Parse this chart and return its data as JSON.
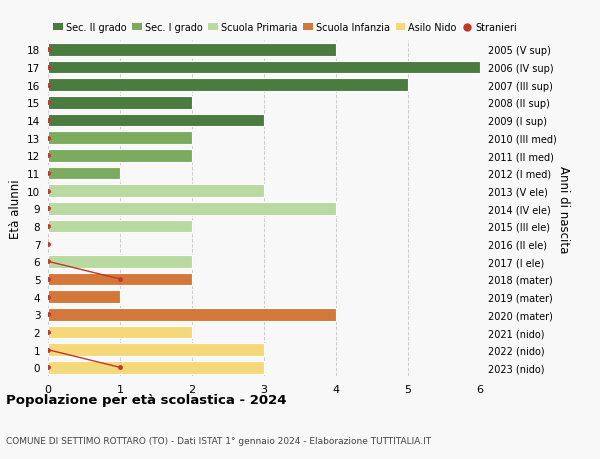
{
  "ages": [
    18,
    17,
    16,
    15,
    14,
    13,
    12,
    11,
    10,
    9,
    8,
    7,
    6,
    5,
    4,
    3,
    2,
    1,
    0
  ],
  "right_labels": [
    "2005 (V sup)",
    "2006 (IV sup)",
    "2007 (III sup)",
    "2008 (II sup)",
    "2009 (I sup)",
    "2010 (III med)",
    "2011 (II med)",
    "2012 (I med)",
    "2013 (V ele)",
    "2014 (IV ele)",
    "2015 (III ele)",
    "2016 (II ele)",
    "2017 (I ele)",
    "2018 (mater)",
    "2019 (mater)",
    "2020 (mater)",
    "2021 (nido)",
    "2022 (nido)",
    "2023 (nido)"
  ],
  "bar_values": [
    4,
    6,
    5,
    2,
    3,
    2,
    2,
    1,
    3,
    4,
    2,
    0,
    2,
    2,
    1,
    4,
    2,
    3,
    3
  ],
  "bar_colors": [
    "#4a7c40",
    "#4a7c40",
    "#4a7c40",
    "#4a7c40",
    "#4a7c40",
    "#7aab5e",
    "#7aab5e",
    "#7aab5e",
    "#b8d9a0",
    "#b8d9a0",
    "#b8d9a0",
    "#b8d9a0",
    "#b8d9a0",
    "#d4773a",
    "#d4773a",
    "#d4773a",
    "#f5d87a",
    "#f5d87a",
    "#f5d87a"
  ],
  "stranieri_data": {
    "18": 0,
    "17": 0,
    "16": 0,
    "15": 0,
    "14": 0,
    "13": 0,
    "12": 0,
    "11": 0,
    "10": 0,
    "9": 0,
    "8": 0,
    "7": 0,
    "6": 0,
    "5": 1,
    "4": 0,
    "3": 0,
    "2": 0,
    "1": 0,
    "0": 1
  },
  "legend_labels": [
    "Sec. II grado",
    "Sec. I grado",
    "Scuola Primaria",
    "Scuola Infanzia",
    "Asilo Nido",
    "Stranieri"
  ],
  "legend_colors": [
    "#4a7c40",
    "#7aab5e",
    "#b8d9a0",
    "#d4773a",
    "#f5d87a",
    "#c0392b"
  ],
  "ylabel_left": "Età alunni",
  "ylabel_right": "Anni di nascita",
  "title": "Popolazione per età scolastica - 2024",
  "subtitle": "COMUNE DI SETTIMO ROTTARO (TO) - Dati ISTAT 1° gennaio 2024 - Elaborazione TUTTITALIA.IT",
  "xlim": [
    0,
    6
  ],
  "xticks": [
    0,
    1,
    2,
    3,
    4,
    5,
    6
  ],
  "bg_color": "#f8f8f8",
  "bar_edge_color": "white",
  "stranieri_color": "#c0392b",
  "grid_color": "#cccccc"
}
